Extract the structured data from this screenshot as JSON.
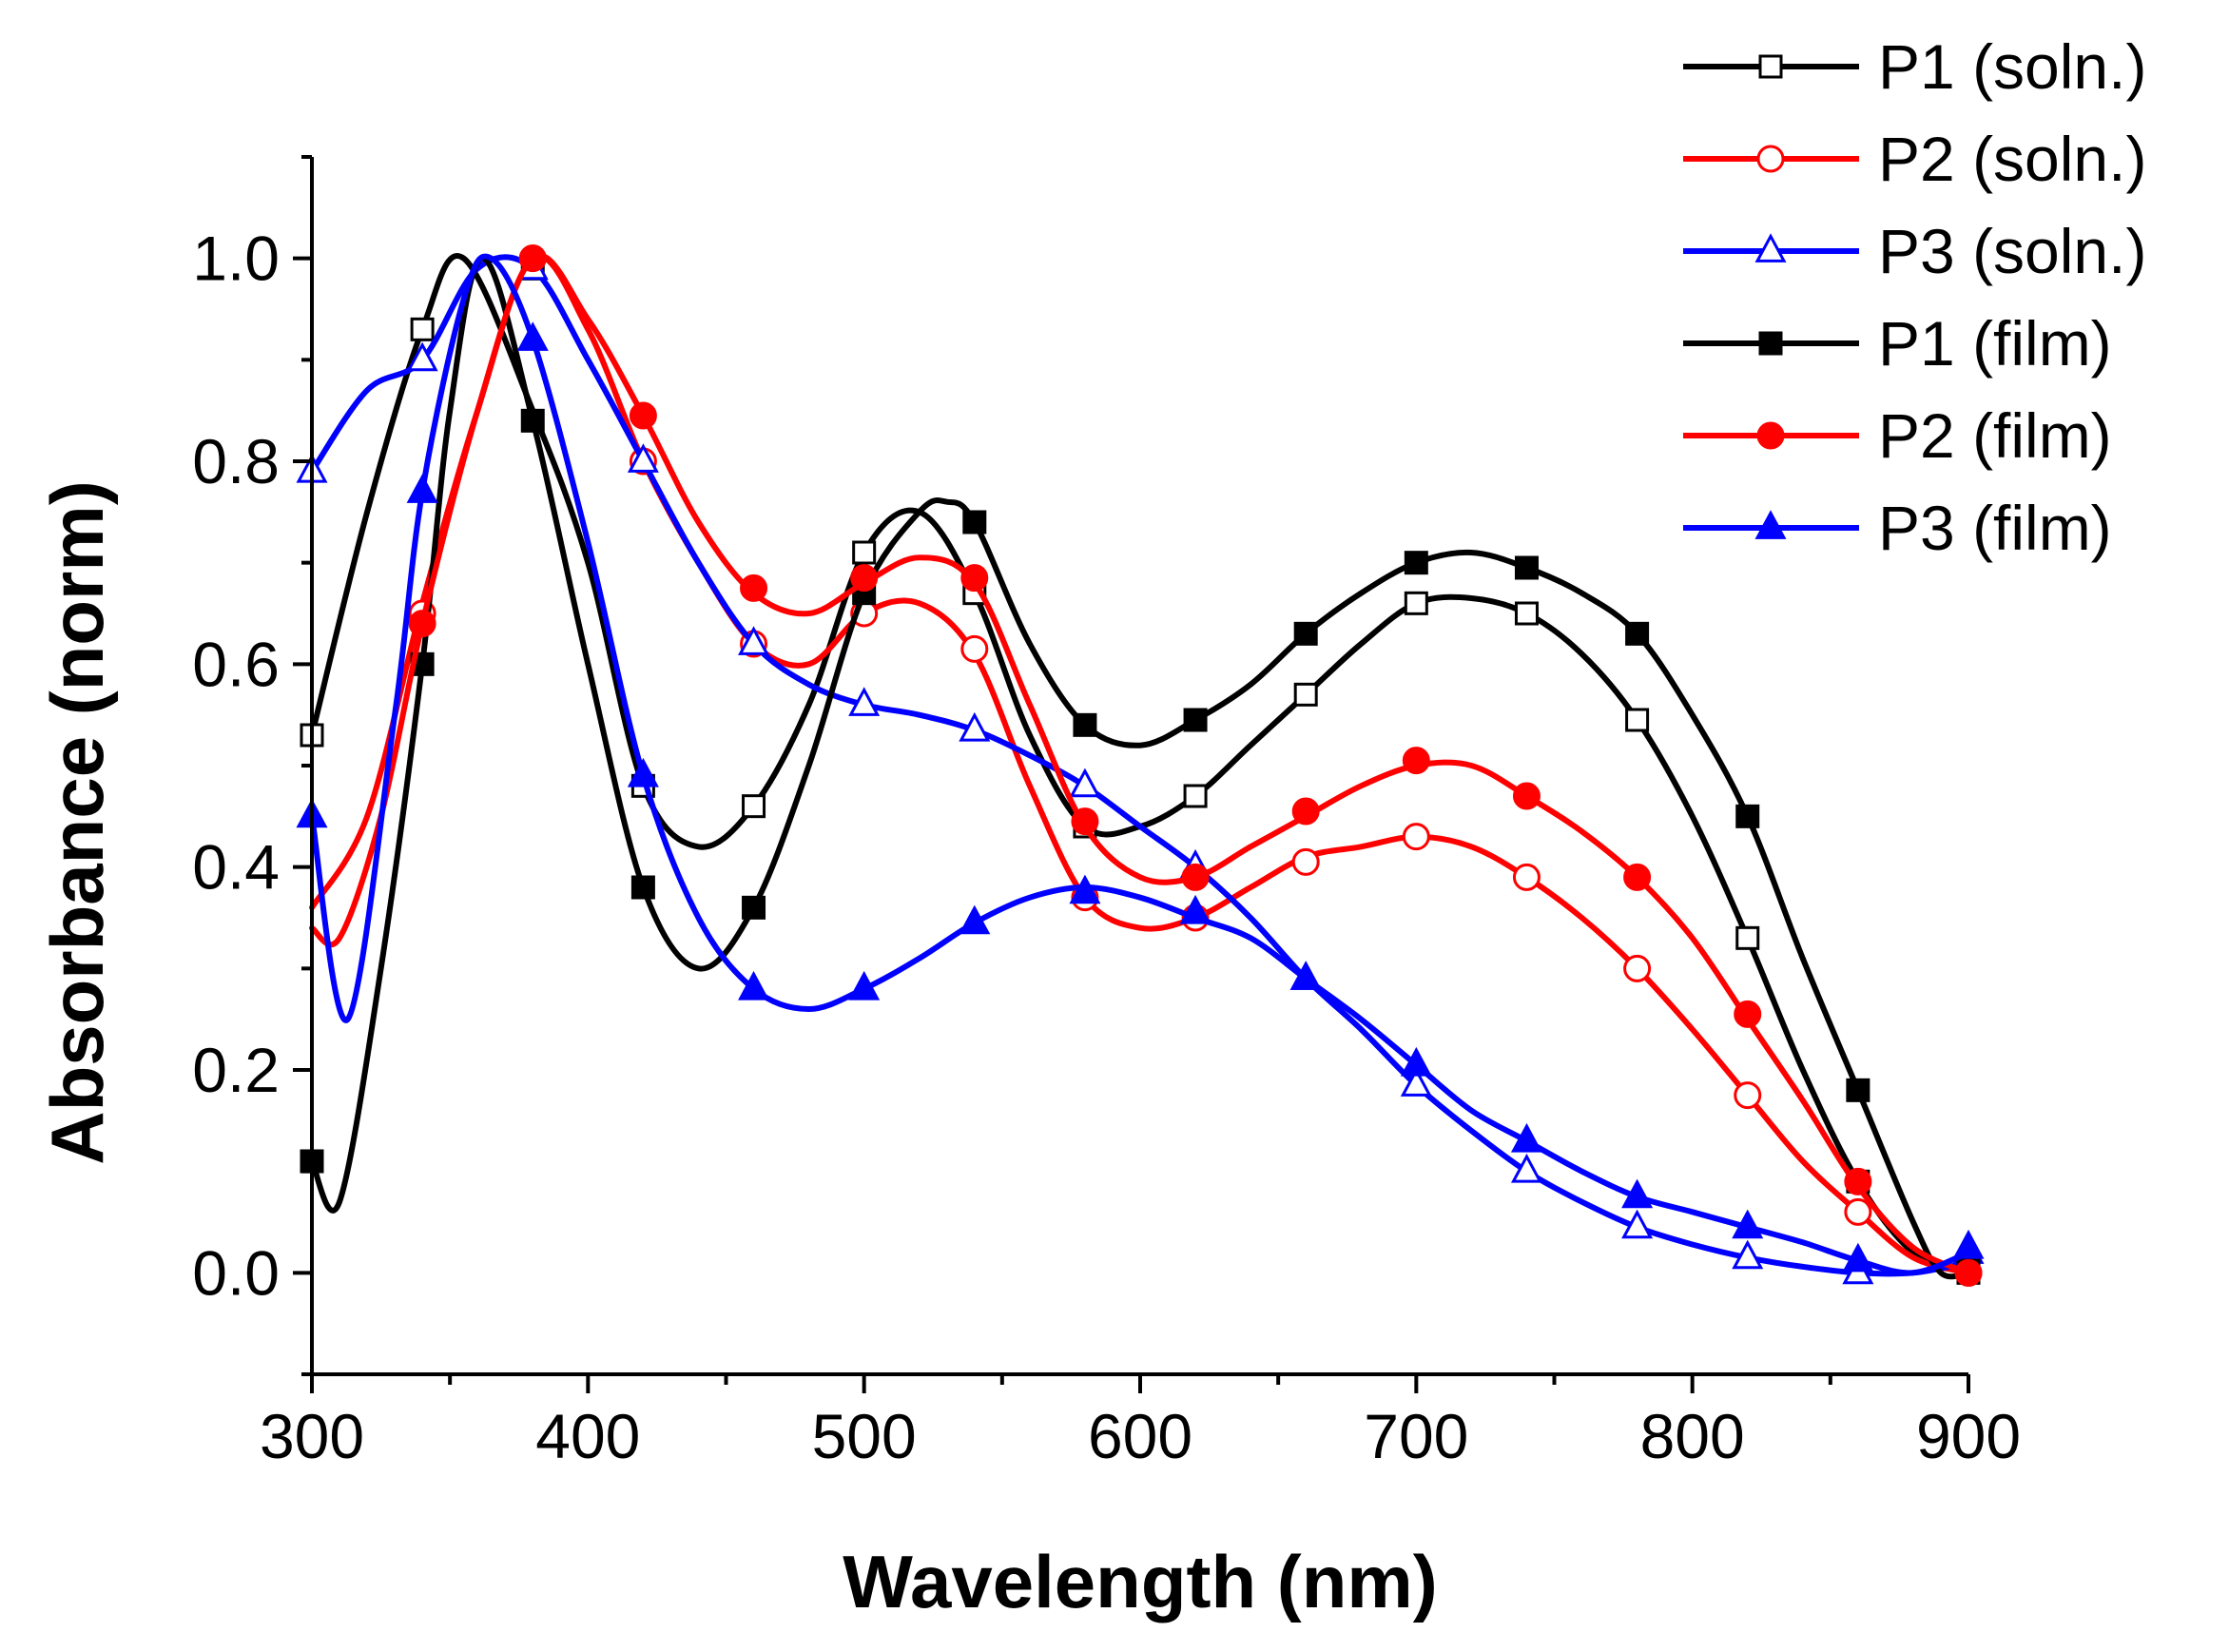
{
  "chart_data": {
    "type": "line",
    "title": "",
    "xlabel": "Wavelength (nm)",
    "ylabel": "Absorbance (norm)",
    "xlim": [
      300,
      900
    ],
    "ylim": [
      -0.1,
      1.1
    ],
    "x_ticks": [
      300,
      400,
      500,
      600,
      700,
      800,
      900
    ],
    "x_tick_labels": [
      "300",
      "400",
      "500",
      "600",
      "700",
      "800",
      "900"
    ],
    "y_ticks": [
      0.0,
      0.2,
      0.4,
      0.6,
      0.8,
      1.0
    ],
    "y_tick_labels": [
      "0.0",
      "0.2",
      "0.4",
      "0.6",
      "0.8",
      "1.0"
    ],
    "grid": false,
    "legend_position": "top-right",
    "series": [
      {
        "name": "P1 (soln.)",
        "color": "#000000",
        "marker": "square",
        "filled": false,
        "curve": [
          [
            300,
            0.53
          ],
          [
            320,
            0.75
          ],
          [
            340,
            0.93
          ],
          [
            355,
            1.0
          ],
          [
            380,
            0.85
          ],
          [
            400,
            0.7
          ],
          [
            420,
            0.48
          ],
          [
            440,
            0.42
          ],
          [
            460,
            0.46
          ],
          [
            480,
            0.56
          ],
          [
            500,
            0.71
          ],
          [
            520,
            0.75
          ],
          [
            540,
            0.67
          ],
          [
            560,
            0.53
          ],
          [
            580,
            0.44
          ],
          [
            600,
            0.44
          ],
          [
            620,
            0.47
          ],
          [
            640,
            0.52
          ],
          [
            660,
            0.57
          ],
          [
            680,
            0.62
          ],
          [
            700,
            0.66
          ],
          [
            720,
            0.665
          ],
          [
            740,
            0.65
          ],
          [
            760,
            0.61
          ],
          [
            780,
            0.545
          ],
          [
            800,
            0.45
          ],
          [
            820,
            0.33
          ],
          [
            840,
            0.2
          ],
          [
            860,
            0.09
          ],
          [
            880,
            0.02
          ],
          [
            900,
            0.0
          ]
        ],
        "markers": [
          [
            300,
            0.53
          ],
          [
            340,
            0.93
          ],
          [
            380,
            0.99
          ],
          [
            420,
            0.48
          ],
          [
            460,
            0.46
          ],
          [
            500,
            0.71
          ],
          [
            540,
            0.67
          ],
          [
            580,
            0.44
          ],
          [
            620,
            0.47
          ],
          [
            660,
            0.57
          ],
          [
            700,
            0.66
          ],
          [
            740,
            0.65
          ],
          [
            780,
            0.545
          ],
          [
            820,
            0.33
          ],
          [
            860,
            0.09
          ],
          [
            900,
            0.0
          ]
        ]
      },
      {
        "name": "P2 (soln.)",
        "color": "#ff0000",
        "marker": "circle",
        "filled": false,
        "curve": [
          [
            300,
            0.36
          ],
          [
            320,
            0.45
          ],
          [
            340,
            0.66
          ],
          [
            360,
            0.85
          ],
          [
            380,
            1.0
          ],
          [
            400,
            0.93
          ],
          [
            420,
            0.8
          ],
          [
            440,
            0.7
          ],
          [
            460,
            0.62
          ],
          [
            480,
            0.6
          ],
          [
            500,
            0.65
          ],
          [
            520,
            0.66
          ],
          [
            540,
            0.61
          ],
          [
            560,
            0.48
          ],
          [
            580,
            0.37
          ],
          [
            600,
            0.34
          ],
          [
            620,
            0.35
          ],
          [
            640,
            0.38
          ],
          [
            660,
            0.41
          ],
          [
            680,
            0.42
          ],
          [
            700,
            0.43
          ],
          [
            720,
            0.42
          ],
          [
            740,
            0.39
          ],
          [
            760,
            0.35
          ],
          [
            780,
            0.3
          ],
          [
            800,
            0.24
          ],
          [
            820,
            0.175
          ],
          [
            840,
            0.11
          ],
          [
            860,
            0.06
          ],
          [
            880,
            0.015
          ],
          [
            900,
            0.0
          ]
        ],
        "markers": [
          [
            340,
            0.65
          ],
          [
            380,
            1.0
          ],
          [
            420,
            0.8
          ],
          [
            460,
            0.62
          ],
          [
            500,
            0.65
          ],
          [
            540,
            0.615
          ],
          [
            580,
            0.37
          ],
          [
            620,
            0.35
          ],
          [
            660,
            0.405
          ],
          [
            700,
            0.43
          ],
          [
            740,
            0.39
          ],
          [
            780,
            0.3
          ],
          [
            820,
            0.175
          ],
          [
            860,
            0.06
          ],
          [
            900,
            0.0
          ]
        ]
      },
      {
        "name": "P3 (soln.)",
        "color": "#0000ff",
        "marker": "triangle",
        "filled": false,
        "curve": [
          [
            300,
            0.79
          ],
          [
            320,
            0.87
          ],
          [
            340,
            0.9
          ],
          [
            360,
            0.99
          ],
          [
            380,
            0.99
          ],
          [
            400,
            0.9
          ],
          [
            420,
            0.8
          ],
          [
            440,
            0.7
          ],
          [
            460,
            0.62
          ],
          [
            480,
            0.58
          ],
          [
            500,
            0.56
          ],
          [
            520,
            0.55
          ],
          [
            540,
            0.535
          ],
          [
            560,
            0.51
          ],
          [
            580,
            0.48
          ],
          [
            600,
            0.44
          ],
          [
            620,
            0.4
          ],
          [
            640,
            0.35
          ],
          [
            660,
            0.29
          ],
          [
            680,
            0.24
          ],
          [
            700,
            0.185
          ],
          [
            720,
            0.14
          ],
          [
            740,
            0.1
          ],
          [
            760,
            0.07
          ],
          [
            780,
            0.045
          ],
          [
            800,
            0.028
          ],
          [
            820,
            0.015
          ],
          [
            840,
            0.006
          ],
          [
            860,
            0.0
          ],
          [
            880,
            0.0
          ],
          [
            900,
            0.01
          ]
        ],
        "markers": [
          [
            300,
            0.79
          ],
          [
            340,
            0.9
          ],
          [
            380,
            0.99
          ],
          [
            420,
            0.8
          ],
          [
            460,
            0.62
          ],
          [
            500,
            0.56
          ],
          [
            540,
            0.535
          ],
          [
            580,
            0.48
          ],
          [
            620,
            0.4
          ],
          [
            660,
            0.29
          ],
          [
            700,
            0.185
          ],
          [
            740,
            0.1
          ],
          [
            780,
            0.045
          ],
          [
            820,
            0.015
          ],
          [
            860,
            0.0
          ],
          [
            900,
            0.02
          ]
        ]
      },
      {
        "name": "P1 (film)",
        "color": "#000000",
        "marker": "square",
        "filled": true,
        "curve": [
          [
            300,
            0.11
          ],
          [
            310,
            0.07
          ],
          [
            325,
            0.3
          ],
          [
            340,
            0.6
          ],
          [
            350,
            0.85
          ],
          [
            362,
            1.0
          ],
          [
            380,
            0.84
          ],
          [
            400,
            0.6
          ],
          [
            420,
            0.38
          ],
          [
            440,
            0.3
          ],
          [
            460,
            0.36
          ],
          [
            480,
            0.5
          ],
          [
            500,
            0.67
          ],
          [
            520,
            0.75
          ],
          [
            530,
            0.76
          ],
          [
            540,
            0.74
          ],
          [
            560,
            0.62
          ],
          [
            580,
            0.54
          ],
          [
            600,
            0.52
          ],
          [
            620,
            0.545
          ],
          [
            640,
            0.58
          ],
          [
            660,
            0.63
          ],
          [
            680,
            0.67
          ],
          [
            700,
            0.7
          ],
          [
            720,
            0.71
          ],
          [
            740,
            0.695
          ],
          [
            760,
            0.67
          ],
          [
            780,
            0.63
          ],
          [
            800,
            0.55
          ],
          [
            820,
            0.45
          ],
          [
            840,
            0.31
          ],
          [
            860,
            0.18
          ],
          [
            880,
            0.05
          ],
          [
            890,
            0.0
          ],
          [
            900,
            0.0
          ]
        ],
        "markers": [
          [
            300,
            0.11
          ],
          [
            340,
            0.6
          ],
          [
            380,
            0.84
          ],
          [
            420,
            0.38
          ],
          [
            460,
            0.36
          ],
          [
            500,
            0.67
          ],
          [
            540,
            0.74
          ],
          [
            580,
            0.54
          ],
          [
            620,
            0.545
          ],
          [
            660,
            0.63
          ],
          [
            700,
            0.7
          ],
          [
            740,
            0.695
          ],
          [
            780,
            0.63
          ],
          [
            820,
            0.45
          ],
          [
            860,
            0.18
          ],
          [
            900,
            0.005
          ]
        ]
      },
      {
        "name": "P2 (film)",
        "color": "#ff0000",
        "marker": "circle",
        "filled": true,
        "curve": [
          [
            300,
            0.34
          ],
          [
            310,
            0.33
          ],
          [
            325,
            0.45
          ],
          [
            340,
            0.64
          ],
          [
            360,
            0.85
          ],
          [
            380,
            1.0
          ],
          [
            400,
            0.94
          ],
          [
            420,
            0.845
          ],
          [
            440,
            0.74
          ],
          [
            460,
            0.67
          ],
          [
            480,
            0.65
          ],
          [
            500,
            0.68
          ],
          [
            520,
            0.705
          ],
          [
            540,
            0.68
          ],
          [
            560,
            0.56
          ],
          [
            580,
            0.44
          ],
          [
            600,
            0.39
          ],
          [
            620,
            0.39
          ],
          [
            640,
            0.42
          ],
          [
            660,
            0.45
          ],
          [
            680,
            0.48
          ],
          [
            700,
            0.5
          ],
          [
            720,
            0.5
          ],
          [
            740,
            0.47
          ],
          [
            760,
            0.435
          ],
          [
            780,
            0.39
          ],
          [
            800,
            0.33
          ],
          [
            820,
            0.25
          ],
          [
            840,
            0.17
          ],
          [
            860,
            0.085
          ],
          [
            880,
            0.025
          ],
          [
            900,
            0.0
          ]
        ],
        "markers": [
          [
            340,
            0.64
          ],
          [
            380,
            1.0
          ],
          [
            420,
            0.845
          ],
          [
            460,
            0.675
          ],
          [
            500,
            0.685
          ],
          [
            540,
            0.685
          ],
          [
            580,
            0.445
          ],
          [
            620,
            0.39
          ],
          [
            660,
            0.455
          ],
          [
            700,
            0.505
          ],
          [
            740,
            0.47
          ],
          [
            780,
            0.39
          ],
          [
            820,
            0.255
          ],
          [
            860,
            0.09
          ],
          [
            900,
            0.0
          ]
        ]
      },
      {
        "name": "P3 (film)",
        "color": "#0000ff",
        "marker": "triangle",
        "filled": true,
        "curve": [
          [
            300,
            0.45
          ],
          [
            313,
            0.25
          ],
          [
            330,
            0.55
          ],
          [
            340,
            0.77
          ],
          [
            355,
            0.96
          ],
          [
            365,
            1.0
          ],
          [
            380,
            0.92
          ],
          [
            400,
            0.72
          ],
          [
            420,
            0.49
          ],
          [
            440,
            0.35
          ],
          [
            460,
            0.28
          ],
          [
            480,
            0.26
          ],
          [
            500,
            0.28
          ],
          [
            520,
            0.31
          ],
          [
            540,
            0.345
          ],
          [
            560,
            0.37
          ],
          [
            580,
            0.38
          ],
          [
            600,
            0.37
          ],
          [
            620,
            0.35
          ],
          [
            640,
            0.33
          ],
          [
            660,
            0.29
          ],
          [
            680,
            0.25
          ],
          [
            700,
            0.205
          ],
          [
            720,
            0.16
          ],
          [
            740,
            0.13
          ],
          [
            760,
            0.1
          ],
          [
            780,
            0.075
          ],
          [
            800,
            0.06
          ],
          [
            820,
            0.045
          ],
          [
            840,
            0.03
          ],
          [
            860,
            0.012
          ],
          [
            880,
            0.0
          ],
          [
            900,
            0.02
          ]
        ],
        "markers": [
          [
            300,
            0.45
          ],
          [
            340,
            0.77
          ],
          [
            380,
            0.92
          ],
          [
            420,
            0.49
          ],
          [
            460,
            0.28
          ],
          [
            500,
            0.28
          ],
          [
            540,
            0.345
          ],
          [
            580,
            0.375
          ],
          [
            620,
            0.355
          ],
          [
            660,
            0.29
          ],
          [
            700,
            0.205
          ],
          [
            740,
            0.13
          ],
          [
            780,
            0.075
          ],
          [
            820,
            0.045
          ],
          [
            860,
            0.012
          ],
          [
            900,
            0.025
          ]
        ]
      }
    ]
  }
}
